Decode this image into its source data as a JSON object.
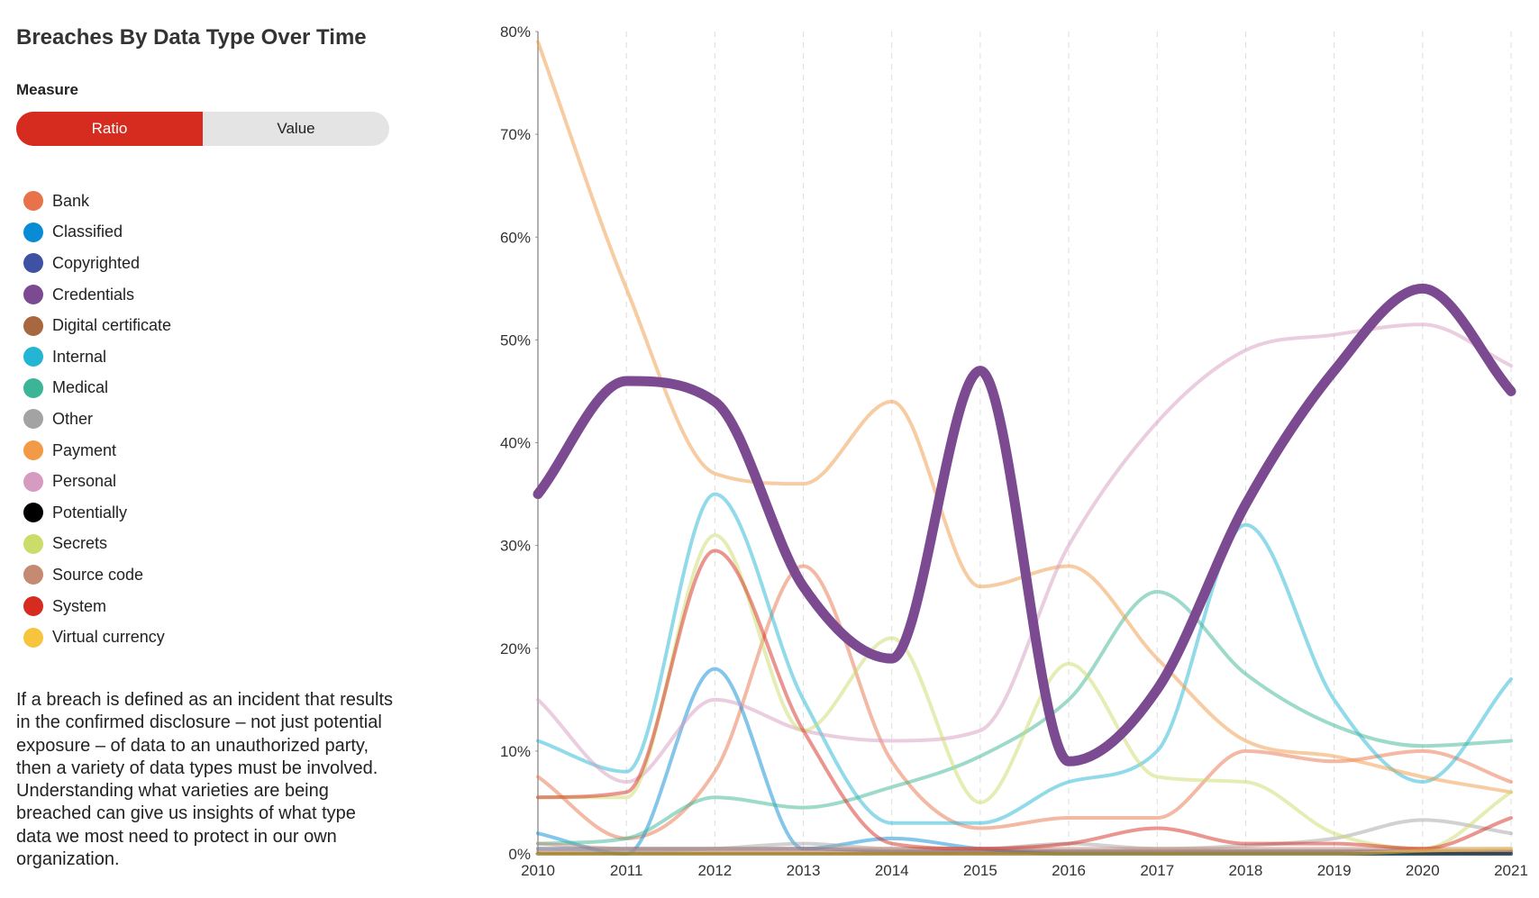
{
  "chart_data": {
    "type": "line",
    "title": "Breaches By Data Type Over Time",
    "measure_label": "Measure",
    "measure_options": [
      "Ratio",
      "Value"
    ],
    "measure_selected": "Ratio",
    "description": "If a breach is defined as an incident that results in the confirmed disclosure – not just potential exposure – of data to an unauthorized party, then a variety of data types must be involved. Understanding what varieties are being breached can give us insights of what type data we most need to protect in our own organization.",
    "x": [
      2010,
      2011,
      2012,
      2013,
      2014,
      2015,
      2016,
      2017,
      2018,
      2019,
      2020,
      2021
    ],
    "xlim": [
      2010,
      2021
    ],
    "ylim": [
      0,
      80
    ],
    "yticks": [
      {
        "value": 0,
        "label": "0%"
      },
      {
        "value": 10,
        "label": "10%"
      },
      {
        "value": 20,
        "label": "20%"
      },
      {
        "value": 30,
        "label": "30%"
      },
      {
        "value": 40,
        "label": "40%"
      },
      {
        "value": 50,
        "label": "50%"
      },
      {
        "value": 60,
        "label": "60%"
      },
      {
        "value": 70,
        "label": "70%"
      },
      {
        "value": 80,
        "label": "80%"
      }
    ],
    "selected": "Credentials",
    "series": [
      {
        "name": "Bank",
        "color": "#e8734a",
        "values": [
          7.5,
          1.5,
          8,
          28,
          9,
          2.5,
          3.5,
          3.5,
          10,
          9,
          10,
          7
        ]
      },
      {
        "name": "Classified",
        "color": "#0a8bd6",
        "values": [
          2,
          0,
          18,
          0.5,
          1.5,
          0.5,
          0,
          0,
          0,
          0,
          0,
          0
        ]
      },
      {
        "name": "Copyrighted",
        "color": "#3f51a3",
        "values": [
          0.5,
          0.5,
          0.5,
          0.5,
          0.3,
          0.3,
          0.3,
          0.3,
          0.3,
          0.3,
          0.3,
          0.3
        ]
      },
      {
        "name": "Credentials",
        "color": "#7b4a91",
        "values": [
          35,
          46,
          44,
          26,
          19,
          47,
          9,
          16,
          34,
          47,
          55,
          45
        ]
      },
      {
        "name": "Digital certificate",
        "color": "#a8683f",
        "values": [
          0.2,
          0.2,
          0.2,
          0.2,
          0.2,
          0.2,
          0.2,
          0.2,
          0.2,
          0.2,
          0.2,
          0.2
        ]
      },
      {
        "name": "Internal",
        "color": "#23b5d3",
        "values": [
          11,
          8,
          35,
          15,
          3,
          3,
          7,
          10,
          32,
          15,
          7,
          17
        ]
      },
      {
        "name": "Medical",
        "color": "#3bb595",
        "values": [
          1,
          1.5,
          5.5,
          4.5,
          6.5,
          9.5,
          15,
          25.5,
          17.5,
          12.5,
          10.5,
          11
        ]
      },
      {
        "name": "Other",
        "color": "#a3a3a3",
        "values": [
          0.5,
          0.3,
          0.5,
          1,
          0.5,
          0.5,
          1,
          0.5,
          0.8,
          1.5,
          3.3,
          2
        ]
      },
      {
        "name": "Payment",
        "color": "#f29a46",
        "values": [
          79,
          55,
          37,
          36,
          44,
          26,
          28,
          19,
          11,
          9.5,
          7.5,
          6
        ]
      },
      {
        "name": "Personal",
        "color": "#d59bc0",
        "values": [
          15,
          7,
          15,
          12,
          11,
          12,
          30,
          42,
          49,
          50.5,
          51.5,
          47.5
        ]
      },
      {
        "name": "Potentially",
        "color": "#000000",
        "values": [
          0,
          0,
          0,
          0,
          0,
          0,
          0,
          0,
          0,
          0,
          0,
          0
        ]
      },
      {
        "name": "Secrets",
        "color": "#cbdc6a",
        "values": [
          5.5,
          5.5,
          31,
          12,
          21,
          5,
          18.5,
          7.5,
          7,
          2,
          0.5,
          6
        ]
      },
      {
        "name": "Source code",
        "color": "#c48a72",
        "values": [
          1,
          0.5,
          0.5,
          0.5,
          0.5,
          0.5,
          0.5,
          0.5,
          0.5,
          0.5,
          0.5,
          0.5
        ]
      },
      {
        "name": "System",
        "color": "#d62b1f",
        "values": [
          5.5,
          6,
          29.5,
          12,
          1,
          0.5,
          1,
          2.5,
          1,
          1,
          0.5,
          3.5
        ]
      },
      {
        "name": "Virtual currency",
        "color": "#f7c53d",
        "values": [
          0,
          0,
          0,
          0,
          0,
          0,
          0,
          0,
          0,
          0,
          0.3,
          0.5
        ]
      }
    ]
  }
}
